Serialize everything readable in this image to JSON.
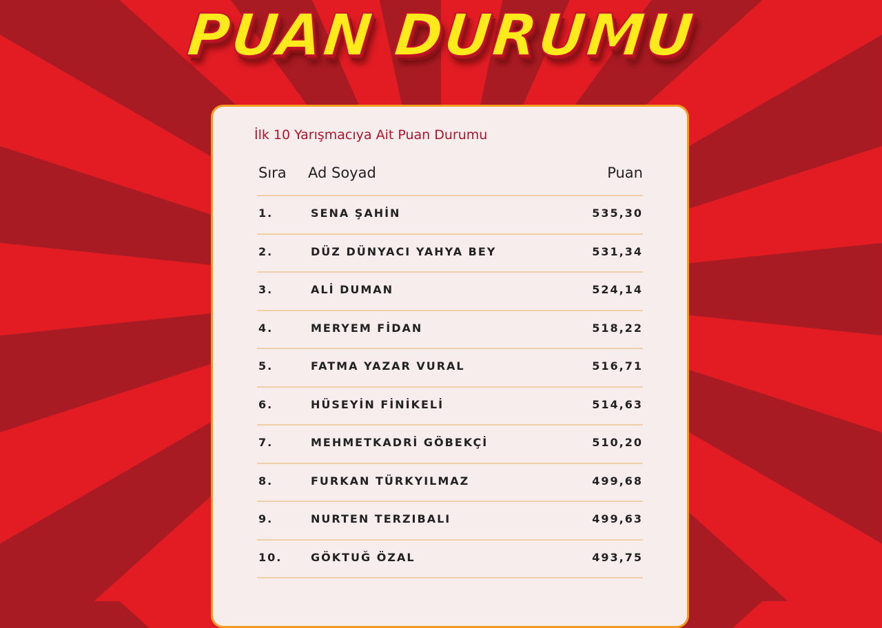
{
  "title": "PUAN DURUMU",
  "subtitle": "İlk 10 Yarışmacıya Ait Puan Durumu",
  "columns": {
    "rank": "Sıra",
    "name": "Ad Soyad",
    "score": "Puan"
  },
  "rows": [
    {
      "rank": "1.",
      "name": "SENA ŞAHİN",
      "score": "535,30"
    },
    {
      "rank": "2.",
      "name": "DÜZ DÜNYACI YAHYA BEY",
      "score": "531,34"
    },
    {
      "rank": "3.",
      "name": "ALİ DUMAN",
      "score": "524,14"
    },
    {
      "rank": "4.",
      "name": "MERYEM FİDAN",
      "score": "518,22"
    },
    {
      "rank": "5.",
      "name": "FATMA YAZAR VURAL",
      "score": "516,71"
    },
    {
      "rank": "6.",
      "name": "HÜSEYİN FİNİKELİ",
      "score": "514,63"
    },
    {
      "rank": "7.",
      "name": "MEHMETKADRİ GÖBEKÇİ",
      "score": "510,20"
    },
    {
      "rank": "8.",
      "name": "FURKAN TÜRKYILMAZ",
      "score": "499,68"
    },
    {
      "rank": "9.",
      "name": "NURTEN TERZIBALI",
      "score": "499,63"
    },
    {
      "rank": "10.",
      "name": "GÖKTUĞ ÖZAL",
      "score": "493,75"
    }
  ],
  "colors": {
    "background_red": "#e31c24",
    "ray_dark": "#a91b22",
    "title_yellow": "#ffea1c",
    "card_border": "#f29a1f",
    "subtitle": "#b0122a"
  }
}
